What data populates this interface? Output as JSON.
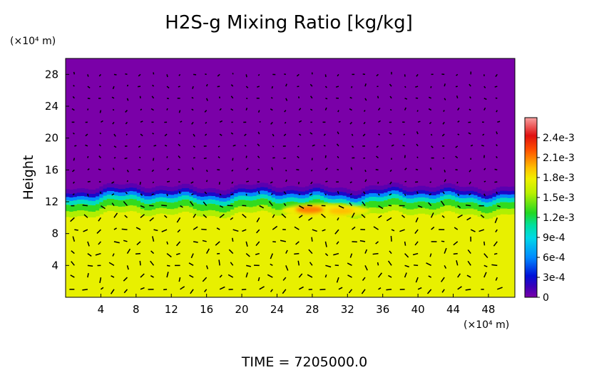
{
  "chart_data": {
    "type": "heatmap",
    "title": "H2S-g Mixing Ratio [kg/kg]",
    "ylabel": "Height",
    "x_unit": "(×10⁴ m)",
    "y_unit": "(×10⁴ m)",
    "xlim": [
      0,
      51
    ],
    "ylim": [
      0,
      30
    ],
    "x_ticks": [
      4,
      8,
      12,
      16,
      20,
      24,
      28,
      32,
      36,
      40,
      44,
      48
    ],
    "y_ticks": [
      4,
      8,
      12,
      16,
      20,
      24,
      28
    ],
    "x_tick_labels": [
      "4",
      "8",
      "12",
      "16",
      "20",
      "24",
      "28",
      "32",
      "36",
      "40",
      "44",
      "48"
    ],
    "y_tick_labels": [
      "4",
      "8",
      "12",
      "16",
      "20",
      "24",
      "28"
    ],
    "colorbar": {
      "range": [
        0,
        0.0027
      ],
      "ticks": [
        0,
        0.0003,
        0.0006,
        0.0009,
        0.0012,
        0.0015,
        0.0018,
        0.0021,
        0.0024
      ],
      "tick_labels": [
        "0",
        "3e-4",
        "6e-4",
        "9e-4",
        "1.2e-3",
        "1.5e-3",
        "1.8e-3",
        "2.1e-3",
        "2.4e-3"
      ]
    },
    "field_summary": {
      "lower_layer_value": 0.00175,
      "upper_layer_value": 0,
      "interface_height": 12.5,
      "max_region": {
        "x": [
          25,
          34
        ],
        "y": [
          10.5,
          11.5
        ],
        "value": 0.0021
      }
    },
    "grid": false,
    "vector_overlay": true,
    "footer": "TIME  =  7205000.0"
  }
}
